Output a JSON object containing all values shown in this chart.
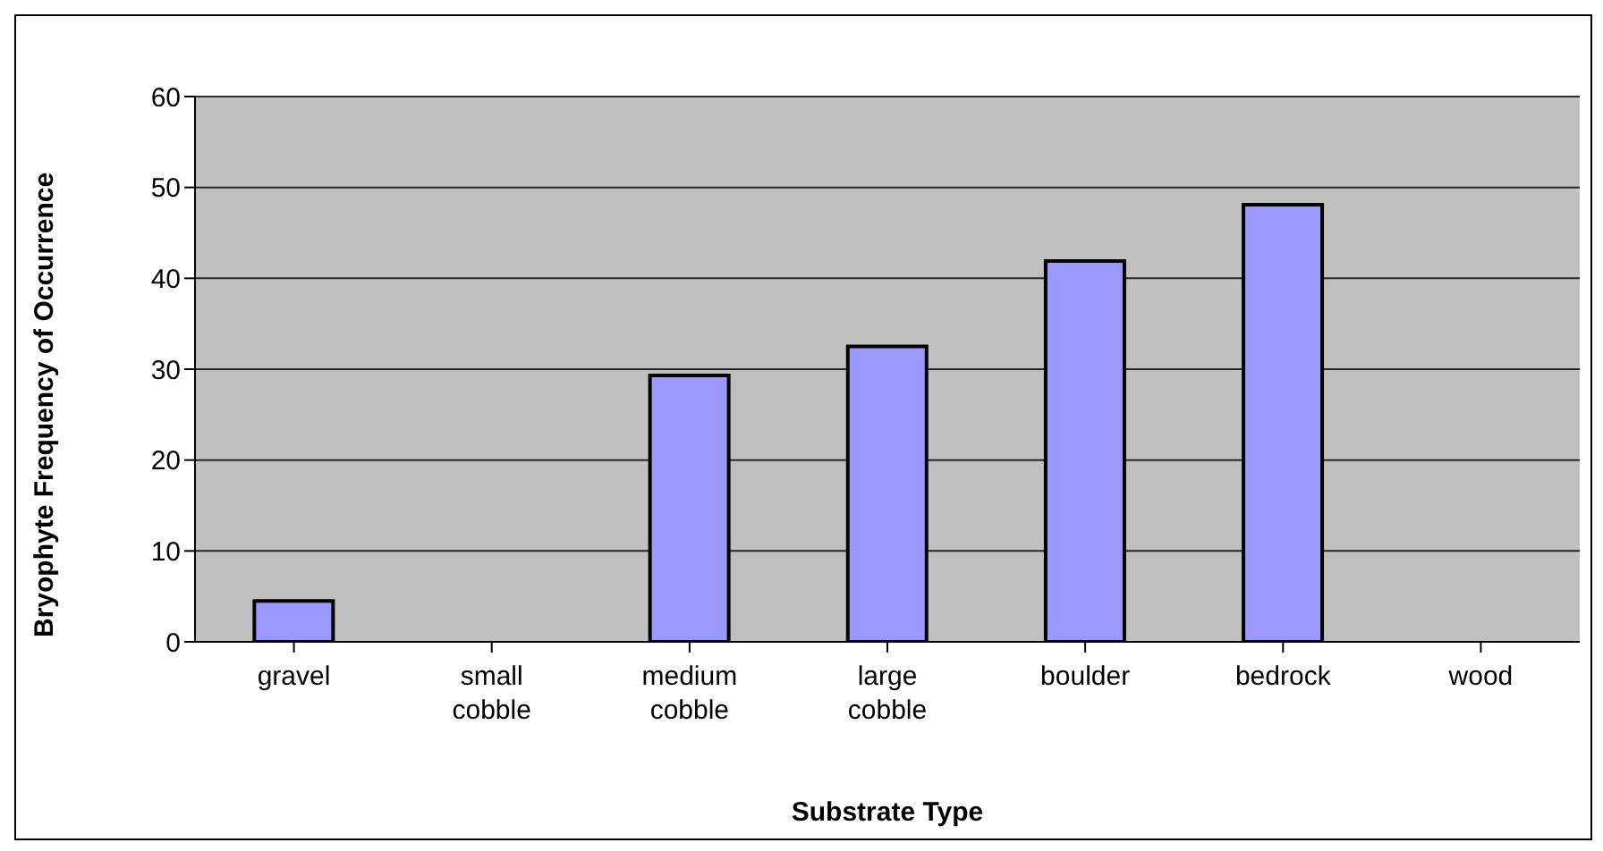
{
  "chart_data": {
    "type": "bar",
    "xlabel": "Substrate Type",
    "ylabel": "Bryophyte Frequency of Occurrence",
    "categories": [
      "gravel",
      "small cobble",
      "medium cobble",
      "large cobble",
      "boulder",
      "bedrock",
      "wood"
    ],
    "values": [
      4.5,
      0,
      29.3,
      32.5,
      41.9,
      48.1,
      0
    ],
    "color": "#9999ff",
    "ylim": [
      0,
      60
    ],
    "yticks": [
      0,
      10,
      20,
      30,
      40,
      50,
      60
    ],
    "grid": "y"
  }
}
